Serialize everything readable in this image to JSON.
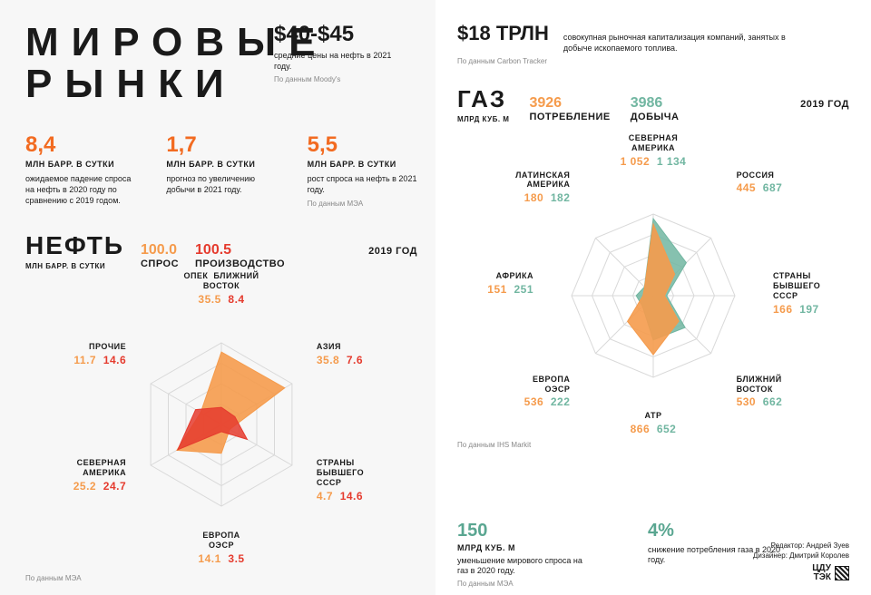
{
  "colors": {
    "orange_bold": "#f26b21",
    "orange_light": "#f59b4c",
    "red": "#e53b2e",
    "teal": "#71b6a1",
    "teal_dark": "#5aa691",
    "grid": "#d9d9d9",
    "text": "#1a1a1a",
    "muted": "#888888",
    "bg_left": "#f7f7f7",
    "bg_right": "#ffffff"
  },
  "left": {
    "title_l1": "МИРОВЫЕ",
    "title_l2": "РЫНКИ",
    "price_value": "$40-$45",
    "price_text": "средние цены на нефть в 2021 году.",
    "price_src": "По данным Moody's",
    "stats": [
      {
        "value": "8,4",
        "unit": "МЛН БАРР. В СУТКИ",
        "text": "ожидаемое падение спроса на нефть в 2020 году по сравнению с 2019 годом."
      },
      {
        "value": "1,7",
        "unit": "МЛН БАРР. В СУТКИ",
        "text": "прогноз по увеличению добычи в 2021 году."
      },
      {
        "value": "5,5",
        "unit": "МЛН БАРР. В СУТКИ",
        "text": "рост спроса на нефть в 2021 году."
      }
    ],
    "stats_src": "По данным МЭА",
    "oil": {
      "title": "НЕФТЬ",
      "unit": "МЛН БАРР. В СУТКИ",
      "legend_demand_val": "100.0",
      "legend_demand_word": "СПРОС",
      "legend_prod_val": "100.5",
      "legend_prod_word": "ПРОИЗВОДСТВО",
      "year": "2019 ГОД",
      "demand_color": "#f59b4c",
      "prod_color": "#e53b2e",
      "axes": [
        {
          "name": "ОПЕК",
          "demand": 35.5,
          "prod": null,
          "name2": "БЛИЖНИЙ ВОСТОК",
          "prod2": 8.4
        },
        {
          "name": "АЗИЯ",
          "demand": 35.8,
          "prod": 7.6
        },
        {
          "name": "СТРАНЫ БЫВШЕГО СССР",
          "demand": 4.7,
          "prod": 14.6
        },
        {
          "name": "ЕВРОПА ОЭСР",
          "demand": 14.1,
          "prod": 3.5
        },
        {
          "name": "СЕВЕРНАЯ АМЕРИКА",
          "demand": 25.2,
          "prod": 24.7
        },
        {
          "name": "ПРОЧИЕ",
          "demand": 11.7,
          "prod": 14.6
        }
      ],
      "radar_max": 40,
      "radar_rings": 4
    },
    "oil_src": "По данным МЭА"
  },
  "right": {
    "trln_value": "$18 ТРЛН",
    "trln_text": "совокупная рыночная капитализация компаний, занятых в добыче ископаемого топлива.",
    "trln_src": "По данным Carbon Tracker",
    "gas": {
      "title": "ГАЗ",
      "unit": "МЛРД КУБ. М",
      "legend_cons_val": "3926",
      "legend_cons_word": "ПОТРЕБЛЕНИЕ",
      "legend_prod_val": "3986",
      "legend_prod_word": "ДОБЫЧА",
      "year": "2019 ГОД",
      "cons_color": "#f59b4c",
      "prod_color": "#71b6a1",
      "axes": [
        {
          "name": "СЕВЕРНАЯ АМЕРИКА",
          "cons": 1052,
          "cons_disp": "1 052",
          "prod": 1134,
          "prod_disp": "1 134"
        },
        {
          "name": "РОССИЯ",
          "cons": 445,
          "prod": 687
        },
        {
          "name": "СТРАНЫ БЫВШЕГО СССР",
          "cons": 166,
          "prod": 197
        },
        {
          "name": "БЛИЖНИЙ ВОСТОК",
          "cons": 530,
          "prod": 662
        },
        {
          "name": "АТР",
          "cons": 866,
          "prod": 652
        },
        {
          "name": "ЕВРОПА ОЭСР",
          "cons": 536,
          "prod": 222
        },
        {
          "name": "АФРИКА",
          "cons": 151,
          "prod": 251
        },
        {
          "name": "ЛАТИНСКАЯ АМЕРИКА",
          "cons": 180,
          "prod": 182
        }
      ],
      "radar_max": 1200,
      "radar_rings": 4
    },
    "gas_src": "По данным IHS Markit",
    "bottom": [
      {
        "value": "150",
        "unit": "МЛРД КУБ. М",
        "text": "уменьшение мирового спроса на газ в 2020 году."
      },
      {
        "value": "4%",
        "unit": "",
        "text": "снижение потребления газа в 2020 году."
      }
    ],
    "bottom_src": "По данным МЭА",
    "credit1": "Редактор: Андрей Зуев",
    "credit2": "Дизайнер: Дмитрий Королев",
    "logo_l1": "ЦДУ",
    "logo_l2": "ТЭК"
  }
}
